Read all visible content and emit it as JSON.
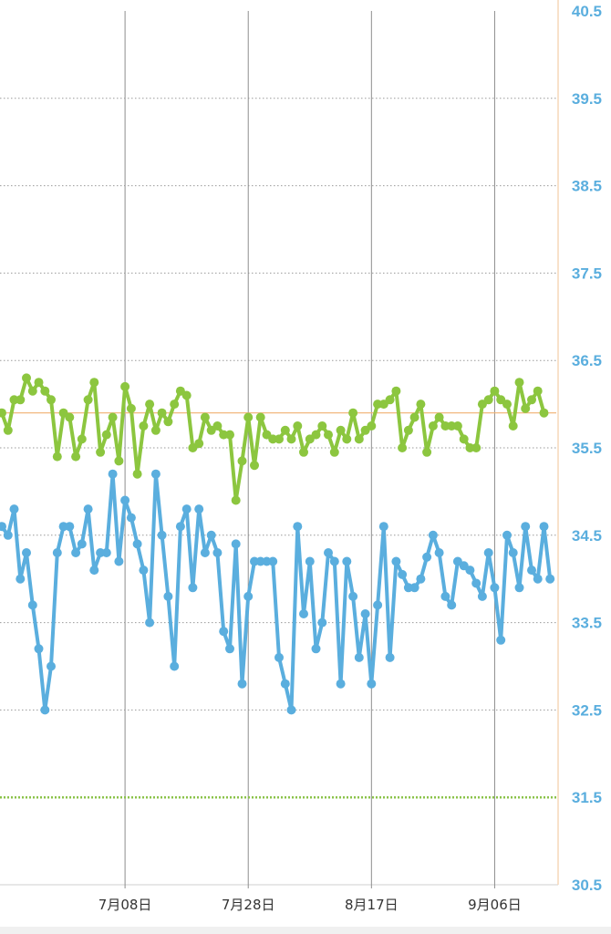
{
  "chart_data": {
    "type": "line",
    "title": "",
    "xlabel": "",
    "ylabel": "",
    "ylim": [
      30.5,
      40.5
    ],
    "y_ticks": [
      "40.5",
      "39.5",
      "38.5",
      "37.5",
      "36.5",
      "35.5",
      "34.5",
      "33.5",
      "32.5",
      "31.5",
      "30.5"
    ],
    "x_ticks": [
      {
        "label": "7月08日",
        "day": 20
      },
      {
        "label": "7月28日",
        "day": 40
      },
      {
        "label": "8月17日",
        "day": 60
      },
      {
        "label": "9月06日",
        "day": 80
      }
    ],
    "xlim_days": [
      0,
      90
    ],
    "reference_lines": [
      {
        "value": 35.9,
        "color": "#f0b070",
        "style": "solid"
      },
      {
        "value": 31.5,
        "color": "#8bc34a",
        "style": "dotted"
      }
    ],
    "grid": true,
    "colors": {
      "green": "#8cc63f",
      "blue": "#5aaede",
      "axis_text": "#5aaede",
      "axis_line": "#f5d7b8"
    },
    "series": [
      {
        "name": "",
        "color": "#8cc63f",
        "values": [
          35.9,
          35.7,
          36.05,
          36.05,
          36.3,
          36.15,
          36.25,
          36.15,
          36.05,
          35.4,
          35.9,
          35.85,
          35.4,
          35.6,
          36.05,
          36.25,
          35.45,
          35.65,
          35.85,
          35.35,
          36.2,
          35.95,
          35.2,
          35.75,
          36.0,
          35.7,
          35.9,
          35.8,
          36.0,
          36.15,
          36.1,
          35.5,
          35.55,
          35.85,
          35.7,
          35.75,
          35.65,
          35.65,
          34.9,
          35.35,
          35.85,
          35.3,
          35.85,
          35.65,
          35.6,
          35.6,
          35.7,
          35.6,
          35.75,
          35.45,
          35.6,
          35.65,
          35.75,
          35.65,
          35.45,
          35.7,
          35.6,
          35.9,
          35.6,
          35.7,
          35.75,
          36.0,
          36.0,
          36.05,
          36.15,
          35.5,
          35.7,
          35.85,
          36.0,
          35.45,
          35.75,
          35.85,
          35.75,
          35.75,
          35.75,
          35.6,
          35.5,
          35.5,
          36.0,
          36.05,
          36.15,
          36.05,
          36.0,
          35.75,
          36.25,
          35.95,
          36.05,
          36.15,
          35.9
        ]
      },
      {
        "name": "",
        "color": "#5aaede",
        "values": [
          34.6,
          34.5,
          34.8,
          34.0,
          34.3,
          33.7,
          33.2,
          32.5,
          33.0,
          34.3,
          34.6,
          34.6,
          34.3,
          34.4,
          34.8,
          34.1,
          34.3,
          34.3,
          35.2,
          34.2,
          34.9,
          34.7,
          34.4,
          34.1,
          33.5,
          35.2,
          34.5,
          33.8,
          33.0,
          34.6,
          34.8,
          33.9,
          34.8,
          34.3,
          34.5,
          34.3,
          33.4,
          33.2,
          34.4,
          32.8,
          33.8,
          34.2,
          34.2,
          34.2,
          34.2,
          33.1,
          32.8,
          32.5,
          34.6,
          33.6,
          34.2,
          33.2,
          33.5,
          34.3,
          34.2,
          32.8,
          34.2,
          33.8,
          33.1,
          33.6,
          32.8,
          33.7,
          34.6,
          33.1,
          34.2,
          34.05,
          33.9,
          33.9,
          34.0,
          34.25,
          34.5,
          34.3,
          33.8,
          33.7,
          34.2,
          34.15,
          34.1,
          33.95,
          33.8,
          34.3,
          33.9,
          33.3,
          34.5,
          34.3,
          33.9,
          34.6,
          34.1,
          34.0,
          34.6,
          34.0
        ]
      }
    ]
  }
}
